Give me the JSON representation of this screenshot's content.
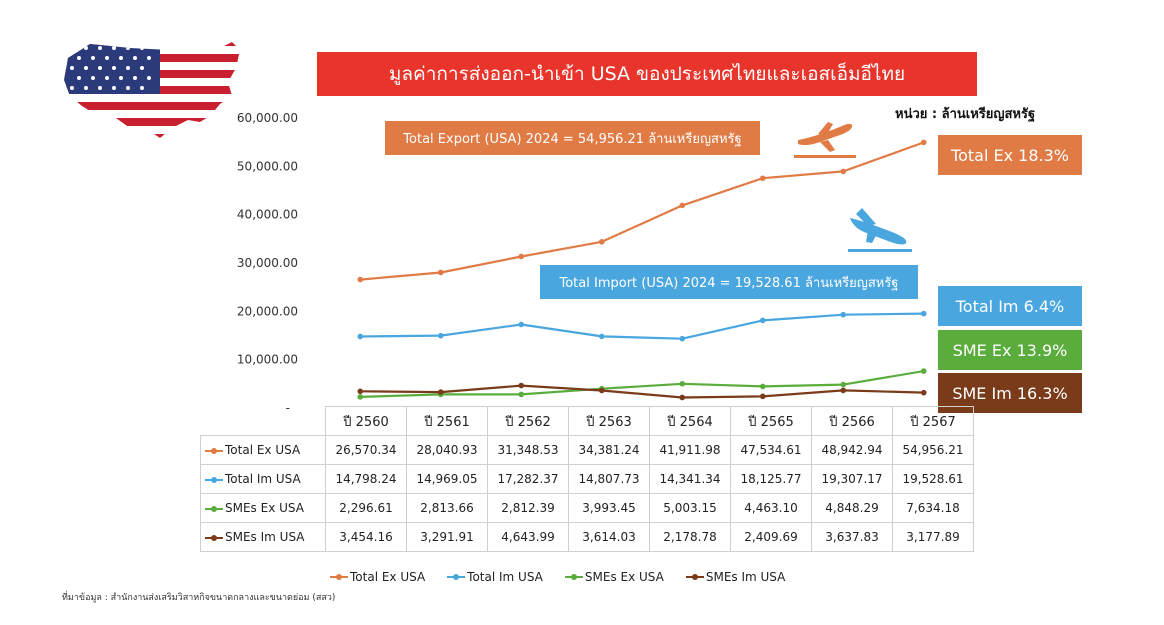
{
  "title": "มูลค่าการส่งออก-นำเข้า USA ของประเทศไทยและเอสเอ็มอีไทย",
  "unit_note": "หน่วย : ล้านเหรียญสหรัฐ",
  "export_callout": "Total Export (USA) 2024 = 54,956.21 ล้านเหรียญสหรัฐ",
  "import_callout": "Total Import (USA) 2024 = 19,528.61 ล้านเหรียญสหรัฐ",
  "badges": {
    "total_ex": "Total Ex 18.3%",
    "total_im": "Total Im 6.4%",
    "sme_ex": "SME Ex 13.9%",
    "sme_im": "SME Im 16.3%"
  },
  "source": "ที่มาข้อมูล : สำนักงานส่งเสริมวิสาหกิจขนาดกลางและขนาดย่อม (สสว)",
  "icons": [
    "usa-flag-map-icon",
    "plane-takeoff-icon",
    "plane-landing-icon"
  ],
  "chart_data": {
    "type": "line",
    "categories": [
      "ปี 2560",
      "ปี 2561",
      "ปี 2562",
      "ปี 2563",
      "ปี 2564",
      "ปี 2565",
      "ปี 2566",
      "ปี 2567"
    ],
    "series": [
      {
        "name": "Total Ex USA",
        "color": "#e07b45",
        "values": [
          26570.34,
          28040.93,
          31348.53,
          34381.24,
          41911.98,
          47534.61,
          48942.94,
          54956.21
        ],
        "labels": [
          "26,570.34",
          "28,040.93",
          "31,348.53",
          "34,381.24",
          "41,911.98",
          "47,534.61",
          "48,942.94",
          "54,956.21"
        ]
      },
      {
        "name": "Total Im USA",
        "color": "#4aa6df",
        "values": [
          14798.24,
          14969.05,
          17282.37,
          14807.73,
          14341.34,
          18125.77,
          19307.17,
          19528.61
        ],
        "labels": [
          "14,798.24",
          "14,969.05",
          "17,282.37",
          "14,807.73",
          "14,341.34",
          "18,125.77",
          "19,307.17",
          "19,528.61"
        ]
      },
      {
        "name": "SMEs Ex USA",
        "color": "#5aad3c",
        "values": [
          2296.61,
          2813.66,
          2812.39,
          3993.45,
          5003.15,
          4463.1,
          4848.29,
          7634.18
        ],
        "labels": [
          "2,296.61",
          "2,813.66",
          "2,812.39",
          "3,993.45",
          "5,003.15",
          "4,463.10",
          "4,848.29",
          "7,634.18"
        ]
      },
      {
        "name": "SMEs Im USA",
        "color": "#7a3b1a",
        "values": [
          3454.16,
          3291.91,
          4643.99,
          3614.03,
          2178.78,
          2409.69,
          3637.83,
          3177.89
        ],
        "labels": [
          "3,454.16",
          "3,291.91",
          "4,643.99",
          "3,614.03",
          "2,178.78",
          "2,409.69",
          "3,637.83",
          "3,177.89"
        ]
      }
    ],
    "y_ticks": [
      10000,
      20000,
      30000,
      40000,
      50000,
      60000
    ],
    "y_tick_labels": [
      "10,000.00",
      "20,000.00",
      "30,000.00",
      "40,000.00",
      "50,000.00",
      "60,000.00"
    ],
    "y_zero_label": "-",
    "ylim": [
      0,
      60000
    ],
    "grid": false,
    "legend": "bottom"
  }
}
